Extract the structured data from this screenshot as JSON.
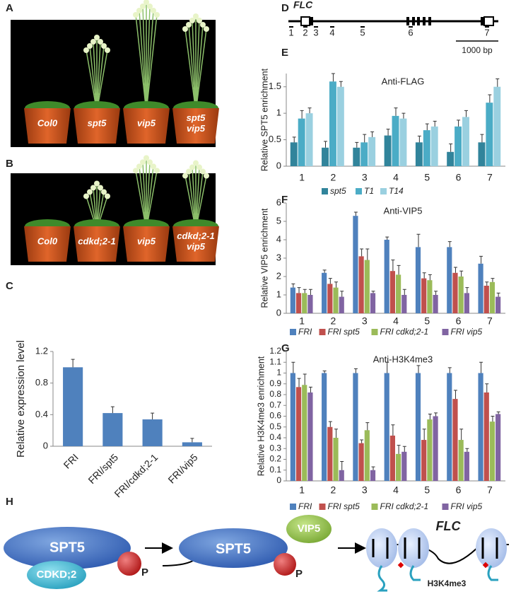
{
  "panels": [
    "A",
    "B",
    "C",
    "D",
    "E",
    "F",
    "G",
    "H"
  ],
  "photos": [
    {
      "labels": [
        [
          "Col0"
        ],
        [
          "spt5"
        ],
        [
          "vip5"
        ],
        [
          "spt5",
          "vip5"
        ]
      ]
    },
    {
      "labels": [
        [
          "Col0"
        ],
        [
          "cdkd;2-1"
        ],
        [
          "vip5"
        ],
        [
          "cdkd;2-1",
          "vip5"
        ]
      ]
    }
  ],
  "gene_map": {
    "gene": "FLC",
    "primers": [
      "1",
      "2",
      "3",
      "4",
      "5",
      "6",
      "7"
    ],
    "scale": "1000 bp"
  },
  "chart_data": [
    {
      "type": "bar",
      "y_label": "Relative expression level",
      "categories": [
        "FRI",
        "FRI/spt5",
        "FRI/cdkd;2-1",
        "FRI/vip5"
      ],
      "values": [
        1.0,
        0.42,
        0.34,
        0.05
      ],
      "errors": [
        0.1,
        0.08,
        0.08,
        0.05
      ],
      "color": "#4f81bd",
      "ylim": [
        0,
        1.2
      ],
      "yticks": [
        0,
        0.4,
        0.8,
        1.2
      ]
    },
    {
      "type": "bar",
      "annotation": "Anti-FLAG",
      "y_label": "Relative SPT5 enrichment",
      "categories": [
        "1",
        "2",
        "3",
        "4",
        "5",
        "6",
        "7"
      ],
      "ylim": [
        0,
        1.75
      ],
      "yticks": [
        0,
        0.5,
        1,
        1.5
      ],
      "series": [
        {
          "name": "spt5",
          "color": "#31849b",
          "values": [
            0.45,
            0.35,
            0.35,
            0.58,
            0.45,
            0.27,
            0.45
          ],
          "errors": [
            0.1,
            0.12,
            0.1,
            0.12,
            0.12,
            0.15,
            0.15
          ]
        },
        {
          "name": "T1",
          "color": "#4bacc6",
          "values": [
            0.9,
            1.6,
            0.45,
            0.95,
            0.68,
            0.75,
            1.2
          ],
          "errors": [
            0.15,
            0.15,
            0.15,
            0.15,
            0.12,
            0.12,
            0.15
          ]
        },
        {
          "name": "T14",
          "color": "#9ad0e0",
          "values": [
            1.0,
            1.5,
            0.55,
            0.9,
            0.75,
            0.93,
            1.5
          ],
          "errors": [
            0.1,
            0.1,
            0.1,
            0.1,
            0.1,
            0.12,
            0.15
          ]
        }
      ]
    },
    {
      "type": "bar",
      "annotation": "Anti-VIP5",
      "y_label": "Relative VIP5 enrichment",
      "categories": [
        "1",
        "2",
        "3",
        "4",
        "5",
        "6",
        "7"
      ],
      "ylim": [
        0,
        6
      ],
      "yticks": [
        0,
        1,
        2,
        3,
        4,
        5,
        6
      ],
      "series": [
        {
          "name": "FRI",
          "color": "#4f81bd",
          "values": [
            1.4,
            2.2,
            5.3,
            4.0,
            3.6,
            3.6,
            2.7
          ],
          "errors": [
            0.2,
            0.15,
            0.2,
            0.15,
            0.7,
            0.3,
            0.4
          ]
        },
        {
          "name": "FRI spt5",
          "color": "#c0504d",
          "values": [
            1.1,
            1.6,
            3.1,
            2.3,
            1.9,
            2.2,
            1.5
          ],
          "errors": [
            0.3,
            0.3,
            0.4,
            0.6,
            0.3,
            0.3,
            0.2
          ]
        },
        {
          "name": "FRI cdkd;2-1",
          "color": "#9bbb59",
          "values": [
            1.1,
            1.4,
            2.9,
            2.1,
            1.8,
            2.0,
            1.7
          ],
          "errors": [
            0.2,
            0.3,
            0.6,
            0.5,
            0.3,
            0.3,
            0.2
          ]
        },
        {
          "name": "FRI vip5",
          "color": "#8064a2",
          "values": [
            1.0,
            0.9,
            1.1,
            1.0,
            1.0,
            1.1,
            0.9
          ],
          "errors": [
            0.3,
            0.3,
            0.1,
            0.3,
            0.2,
            0.3,
            0.2
          ]
        }
      ]
    },
    {
      "type": "bar",
      "annotation": "Anti-H3K4me3",
      "y_label": "Relative H3K4me3 enrichment",
      "categories": [
        "1",
        "2",
        "3",
        "4",
        "5",
        "6",
        "7"
      ],
      "ylim": [
        0,
        1.2
      ],
      "yticks": [
        0,
        0.1,
        0.2,
        0.3,
        0.4,
        0.5,
        0.6,
        0.7,
        0.8,
        0.9,
        1,
        1.1,
        1.2
      ],
      "series": [
        {
          "name": "FRI",
          "color": "#4f81bd",
          "values": [
            1.0,
            1.0,
            1.0,
            1.0,
            1.0,
            1.0,
            1.0
          ],
          "errors": [
            0.1,
            0.02,
            0.04,
            0.1,
            0.07,
            0.05,
            0.1
          ]
        },
        {
          "name": "FRI spt5",
          "color": "#c0504d",
          "values": [
            0.87,
            0.5,
            0.35,
            0.42,
            0.38,
            0.76,
            0.82
          ],
          "errors": [
            0.08,
            0.05,
            0.03,
            0.1,
            0.1,
            0.08,
            0.08
          ]
        },
        {
          "name": "FRI cdkd;2-1",
          "color": "#9bbb59",
          "values": [
            0.89,
            0.4,
            0.47,
            0.25,
            0.57,
            0.38,
            0.55
          ],
          "errors": [
            0.1,
            0.08,
            0.07,
            0.08,
            0.05,
            0.1,
            0.05
          ]
        },
        {
          "name": "FRI vip5",
          "color": "#8064a2",
          "values": [
            0.82,
            0.1,
            0.1,
            0.27,
            0.6,
            0.27,
            0.62
          ],
          "errors": [
            0.05,
            0.08,
            0.03,
            0.05,
            0.03,
            0.03,
            0.02
          ]
        }
      ]
    }
  ],
  "model": {
    "spt5": "SPT5",
    "cdkd": "CDKD;2",
    "p": "P",
    "vip5": "VIP5",
    "flc": "FLC",
    "mark": "H3K4me3"
  }
}
